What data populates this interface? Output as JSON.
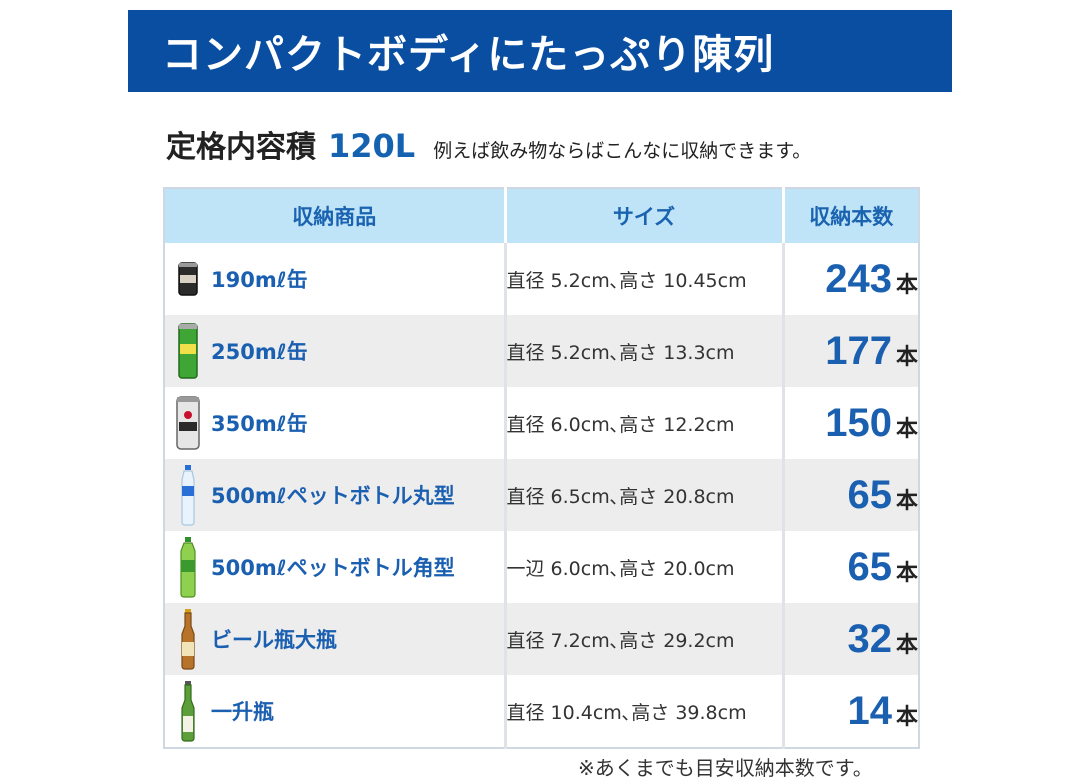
{
  "banner": {
    "title": "コンパクトボディにたっぷり陳列"
  },
  "capacity": {
    "label": "定格内容積",
    "value": "120L",
    "note": "例えば飲み物ならばこんなに収納できます。"
  },
  "table": {
    "headers": [
      "収納商品",
      "サイズ",
      "収納本数"
    ],
    "unit": "本",
    "rows": [
      {
        "icon": "coffee-can-icon",
        "name": "190mℓ缶",
        "size": "直径 5.2cm､高さ 10.45cm",
        "count": "243"
      },
      {
        "icon": "cider-can-icon",
        "name": "250mℓ缶",
        "size": "直径 5.2cm､高さ 13.3cm",
        "count": "177"
      },
      {
        "icon": "beer-can-icon",
        "name": "350mℓ缶",
        "size": "直径 6.0cm､高さ 12.2cm",
        "count": "150"
      },
      {
        "icon": "round-pet-bottle-icon",
        "name": "500mℓペットボトル丸型",
        "size": "直径 6.5cm､高さ 20.8cm",
        "count": "65"
      },
      {
        "icon": "square-pet-bottle-icon",
        "name": "500mℓペットボトル角型",
        "size": "一辺 6.0cm､高さ 20.0cm",
        "count": "65"
      },
      {
        "icon": "beer-bottle-icon",
        "name": "ビール瓶大瓶",
        "size": "直径 7.2cm､高さ 29.2cm",
        "count": "32"
      },
      {
        "icon": "sake-bottle-icon",
        "name": "一升瓶",
        "size": "直径 10.4cm､高さ 39.8cm",
        "count": "14"
      }
    ]
  },
  "footnote": "※あくまでも目安収納本数です。"
}
